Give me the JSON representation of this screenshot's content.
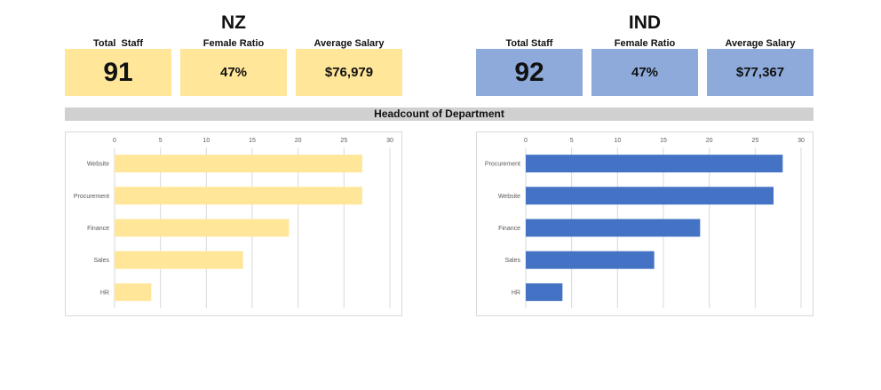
{
  "regions": [
    {
      "title": "NZ",
      "kpis": [
        {
          "label": "Total  Staff",
          "value": "91"
        },
        {
          "label": "Female Ratio",
          "value": "47%"
        },
        {
          "label": "Average Salary",
          "value": "$76,979"
        }
      ],
      "color": "#ffe699"
    },
    {
      "title": "IND",
      "kpis": [
        {
          "label": "Total Staff",
          "value": "92"
        },
        {
          "label": "Female Ratio",
          "value": "47%"
        },
        {
          "label": "Average Salary",
          "value": "$77,367"
        }
      ],
      "color": "#8eaadb"
    }
  ],
  "banner": "Headcount of Department",
  "chart_data": [
    {
      "type": "bar",
      "orientation": "horizontal",
      "categories": [
        "Website",
        "Procurement",
        "Finance",
        "Sales",
        "HR"
      ],
      "values": [
        27,
        27,
        19,
        14,
        4
      ],
      "xlim": [
        0,
        30
      ],
      "xticks": [
        0,
        5,
        10,
        15,
        20,
        25,
        30
      ],
      "axis_position": "top",
      "grid": true,
      "color": "#ffe699"
    },
    {
      "type": "bar",
      "orientation": "horizontal",
      "categories": [
        "Procurement",
        "Website",
        "Finance",
        "Sales",
        "HR"
      ],
      "values": [
        28,
        27,
        19,
        14,
        4
      ],
      "xlim": [
        0,
        30
      ],
      "xticks": [
        0,
        5,
        10,
        15,
        20,
        25,
        30
      ],
      "axis_position": "top",
      "grid": true,
      "color": "#4472c4"
    }
  ]
}
